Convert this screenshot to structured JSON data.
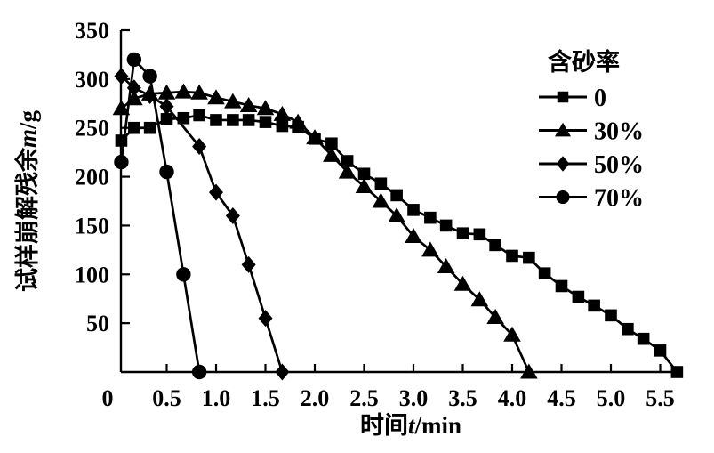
{
  "accent_color": "#000000",
  "background_color": "#ffffff",
  "chart_data": {
    "type": "line",
    "title": "",
    "xlabel_cjk": "时间",
    "xlabel_var": "t",
    "xlabel_unit": "/min",
    "ylabel_cjk": "试样崩解残余",
    "ylabel_var": "m",
    "ylabel_unit": "/g",
    "xlim": [
      0,
      5.75
    ],
    "ylim": [
      0,
      350
    ],
    "grid": false,
    "legend_position": "upper-right",
    "x_axis": {
      "tick_values": [
        0,
        0.5,
        1.0,
        1.5,
        2.0,
        2.5,
        3.0,
        3.5,
        4.0,
        4.5,
        5.0,
        5.5
      ],
      "tick_labels": [
        "0",
        "0.5",
        "1.0",
        "1.5",
        "2.0",
        "2.5",
        "3.0",
        "3.5",
        "4.0",
        "4.5",
        "5.0",
        "5.5"
      ]
    },
    "y_axis": {
      "tick_values": [
        50,
        100,
        150,
        200,
        250,
        300,
        350
      ],
      "tick_labels": [
        "50",
        "100",
        "150",
        "200",
        "250",
        "300",
        "350"
      ]
    },
    "legend": {
      "title": "含砂率",
      "items": [
        {
          "label": "0",
          "marker": "square"
        },
        {
          "label": "30%",
          "marker": "triangle"
        },
        {
          "label": "50%",
          "marker": "diamond"
        },
        {
          "label": "70%",
          "marker": "circle"
        }
      ]
    },
    "series": [
      {
        "name": "0",
        "marker": "square",
        "color": "#000000",
        "x": [
          0.04,
          0.17,
          0.33,
          0.5,
          0.67,
          0.83,
          1.0,
          1.17,
          1.33,
          1.5,
          1.67,
          1.83,
          2.0,
          2.17,
          2.33,
          2.5,
          2.67,
          2.83,
          3.0,
          3.17,
          3.33,
          3.5,
          3.67,
          3.83,
          4.0,
          4.17,
          4.33,
          4.5,
          4.67,
          4.83,
          5.0,
          5.17,
          5.33,
          5.5,
          5.67
        ],
        "y": [
          237,
          250,
          250,
          259,
          260,
          263,
          258,
          258,
          258,
          256,
          252,
          251,
          239,
          234,
          216,
          203,
          193,
          181,
          166,
          158,
          150,
          142,
          141,
          130,
          119,
          117,
          101,
          88,
          77,
          68,
          58,
          44,
          34,
          22,
          0
        ]
      },
      {
        "name": "30%",
        "marker": "triangle",
        "color": "#000000",
        "x": [
          0.04,
          0.17,
          0.33,
          0.5,
          0.67,
          0.83,
          1.0,
          1.17,
          1.33,
          1.5,
          1.67,
          1.83,
          2.0,
          2.17,
          2.33,
          2.5,
          2.67,
          2.83,
          3.0,
          3.17,
          3.33,
          3.5,
          3.67,
          3.83,
          4.0,
          4.17
        ],
        "y": [
          270,
          280,
          285,
          286,
          287,
          286,
          281,
          277,
          273,
          270,
          264,
          256,
          240,
          222,
          205,
          190,
          175,
          160,
          139,
          125,
          108,
          90,
          74,
          56,
          38,
          0
        ]
      },
      {
        "name": "50%",
        "marker": "diamond",
        "color": "#000000",
        "x": [
          0.04,
          0.17,
          0.33,
          0.5,
          0.83,
          1.0,
          1.17,
          1.33,
          1.5,
          1.67
        ],
        "y": [
          303,
          291,
          283,
          272,
          231,
          184,
          160,
          110,
          55,
          0
        ]
      },
      {
        "name": "70%",
        "marker": "circle",
        "color": "#000000",
        "x": [
          0.04,
          0.17,
          0.33,
          0.5,
          0.67,
          0.83
        ],
        "y": [
          215,
          320,
          303,
          205,
          100,
          0
        ]
      }
    ]
  }
}
